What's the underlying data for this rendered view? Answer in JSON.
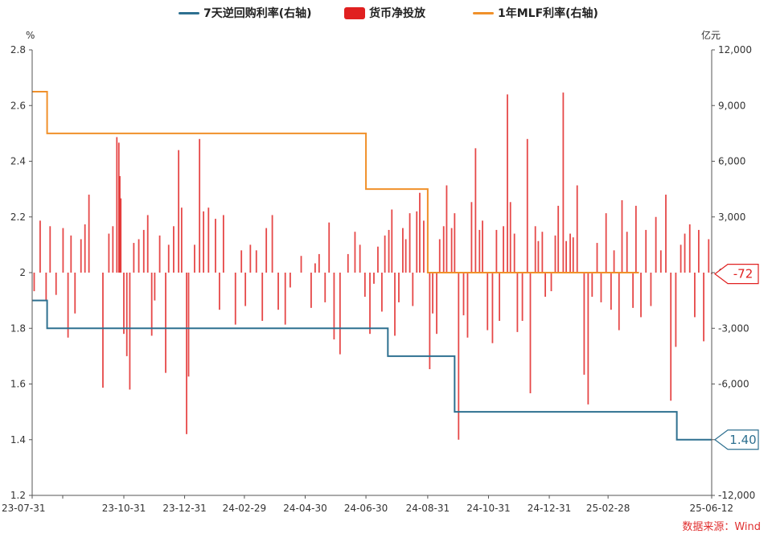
{
  "chart_data": {
    "type": "bar+line",
    "legend": [
      {
        "name": "7天逆回购利率(右轴)",
        "color": "#2e7090",
        "kind": "line"
      },
      {
        "name": "货币净投放",
        "color": "#e02020",
        "kind": "bar"
      },
      {
        "name": "1年MLF利率(右轴)",
        "color": "#f0902a",
        "kind": "line"
      }
    ],
    "left_axis": {
      "unit": "%",
      "min": 1.2,
      "max": 2.8,
      "ticks": [
        "1.2",
        "1.4",
        "1.6",
        "1.8",
        "2",
        "2.2",
        "2.4",
        "2.6",
        "2.8"
      ]
    },
    "right_axis": {
      "unit": "亿元",
      "min": -12000,
      "max": 12000,
      "ticks": [
        "-12,000",
        "-9,000",
        "-6,000",
        "-3,000",
        "0",
        "3,000",
        "6,000",
        "9,000",
        "12,000"
      ]
    },
    "x_axis": {
      "start": "2023-07-31",
      "end": "2025-06-12",
      "ticks": [
        {
          "date": "2023-07-31",
          "label": "23-07-31"
        },
        {
          "date": "2023-10-31",
          "label": "23-10-31"
        },
        {
          "date": "2023-12-31",
          "label": "23-12-31"
        },
        {
          "date": "2024-02-29",
          "label": "24-02-29"
        },
        {
          "date": "2024-04-30",
          "label": "24-04-30"
        },
        {
          "date": "2024-06-30",
          "label": "24-06-30"
        },
        {
          "date": "2024-08-31",
          "label": "24-08-31"
        },
        {
          "date": "2024-10-31",
          "label": "24-10-31"
        },
        {
          "date": "2024-12-31",
          "label": "24-12-31"
        },
        {
          "date": "2025-02-28",
          "label": "25-02-28"
        },
        {
          "date": "2025-06-12",
          "label": "25-06-12"
        }
      ]
    },
    "series": [
      {
        "name": "7天逆回购利率(右轴)",
        "axis": "left",
        "steps": [
          {
            "date": "2023-07-31",
            "value": 1.9
          },
          {
            "date": "2023-08-15",
            "value": 1.8
          },
          {
            "date": "2024-07-22",
            "value": 1.7
          },
          {
            "date": "2024-09-27",
            "value": 1.5
          },
          {
            "date": "2025-05-08",
            "value": 1.4
          }
        ],
        "end_label": "1.40"
      },
      {
        "name": "1年MLF利率(右轴)",
        "axis": "left",
        "steps": [
          {
            "date": "2023-07-31",
            "value": 2.65
          },
          {
            "date": "2023-08-15",
            "value": 2.5
          },
          {
            "date": "2024-06-30",
            "value": 2.3
          },
          {
            "date": "2024-08-31",
            "value": 2.0
          },
          {
            "date": "2025-03-31",
            "value": 2.0
          }
        ]
      },
      {
        "name": "货币净投放",
        "axis": "right",
        "end_label": "-72",
        "bars": [
          {
            "date": "2023-08-02",
            "value": -1000
          },
          {
            "date": "2023-08-08",
            "value": 2800
          },
          {
            "date": "2023-08-14",
            "value": -1500
          },
          {
            "date": "2023-08-18",
            "value": 2500
          },
          {
            "date": "2023-08-24",
            "value": -1200
          },
          {
            "date": "2023-08-31",
            "value": 2400
          },
          {
            "date": "2023-09-05",
            "value": -3500
          },
          {
            "date": "2023-09-08",
            "value": 2000
          },
          {
            "date": "2023-09-12",
            "value": -2200
          },
          {
            "date": "2023-09-18",
            "value": 1800
          },
          {
            "date": "2023-09-22",
            "value": 2600
          },
          {
            "date": "2023-09-26",
            "value": 4200
          },
          {
            "date": "2023-10-10",
            "value": -6200
          },
          {
            "date": "2023-10-16",
            "value": 2100
          },
          {
            "date": "2023-10-20",
            "value": 2500
          },
          {
            "date": "2023-10-24",
            "value": 7300
          },
          {
            "date": "2023-10-26",
            "value": 7000
          },
          {
            "date": "2023-10-27",
            "value": 5200
          },
          {
            "date": "2023-10-28",
            "value": 4000
          },
          {
            "date": "2023-10-31",
            "value": -3300
          },
          {
            "date": "2023-11-03",
            "value": -4500
          },
          {
            "date": "2023-11-06",
            "value": -6300
          },
          {
            "date": "2023-11-10",
            "value": 1600
          },
          {
            "date": "2023-11-15",
            "value": 1800
          },
          {
            "date": "2023-11-20",
            "value": 2300
          },
          {
            "date": "2023-11-24",
            "value": 3100
          },
          {
            "date": "2023-11-28",
            "value": -3400
          },
          {
            "date": "2023-12-01",
            "value": -1500
          },
          {
            "date": "2023-12-06",
            "value": 2000
          },
          {
            "date": "2023-12-12",
            "value": -5400
          },
          {
            "date": "2023-12-15",
            "value": 1500
          },
          {
            "date": "2023-12-20",
            "value": 2500
          },
          {
            "date": "2023-12-25",
            "value": 6600
          },
          {
            "date": "2023-12-28",
            "value": 3500
          },
          {
            "date": "2024-01-02",
            "value": -8700
          },
          {
            "date": "2024-01-04",
            "value": -5600
          },
          {
            "date": "2024-01-10",
            "value": 1500
          },
          {
            "date": "2024-01-15",
            "value": 7200
          },
          {
            "date": "2024-01-19",
            "value": 3300
          },
          {
            "date": "2024-01-24",
            "value": 3500
          },
          {
            "date": "2024-01-31",
            "value": 2900
          },
          {
            "date": "2024-02-04",
            "value": -2000
          },
          {
            "date": "2024-02-08",
            "value": 3100
          },
          {
            "date": "2024-02-20",
            "value": -2800
          },
          {
            "date": "2024-02-26",
            "value": 1200
          },
          {
            "date": "2024-03-01",
            "value": -1800
          },
          {
            "date": "2024-03-06",
            "value": 1500
          },
          {
            "date": "2024-03-12",
            "value": 1200
          },
          {
            "date": "2024-03-18",
            "value": -2600
          },
          {
            "date": "2024-03-22",
            "value": 2400
          },
          {
            "date": "2024-03-28",
            "value": 3100
          },
          {
            "date": "2024-04-03",
            "value": -2000
          },
          {
            "date": "2024-04-10",
            "value": -2800
          },
          {
            "date": "2024-04-15",
            "value": -800
          },
          {
            "date": "2024-04-26",
            "value": 900
          },
          {
            "date": "2024-05-06",
            "value": -1900
          },
          {
            "date": "2024-05-10",
            "value": 500
          },
          {
            "date": "2024-05-14",
            "value": 1000
          },
          {
            "date": "2024-05-20",
            "value": -1600
          },
          {
            "date": "2024-05-24",
            "value": 2700
          },
          {
            "date": "2024-05-29",
            "value": -3600
          },
          {
            "date": "2024-06-04",
            "value": -4400
          },
          {
            "date": "2024-06-12",
            "value": 1000
          },
          {
            "date": "2024-06-19",
            "value": 2200
          },
          {
            "date": "2024-06-24",
            "value": 1500
          },
          {
            "date": "2024-06-29",
            "value": -1300
          },
          {
            "date": "2024-07-04",
            "value": -3300
          },
          {
            "date": "2024-07-08",
            "value": -600
          },
          {
            "date": "2024-07-12",
            "value": 1400
          },
          {
            "date": "2024-07-16",
            "value": -2100
          },
          {
            "date": "2024-07-19",
            "value": 2000
          },
          {
            "date": "2024-07-23",
            "value": 2300
          },
          {
            "date": "2024-07-26",
            "value": 3400
          },
          {
            "date": "2024-07-29",
            "value": -3400
          },
          {
            "date": "2024-08-02",
            "value": -1600
          },
          {
            "date": "2024-08-06",
            "value": 2400
          },
          {
            "date": "2024-08-09",
            "value": 1800
          },
          {
            "date": "2024-08-13",
            "value": 3200
          },
          {
            "date": "2024-08-16",
            "value": -1800
          },
          {
            "date": "2024-08-20",
            "value": 3300
          },
          {
            "date": "2024-08-23",
            "value": 4300
          },
          {
            "date": "2024-08-27",
            "value": 2800
          },
          {
            "date": "2024-09-02",
            "value": -5200
          },
          {
            "date": "2024-09-05",
            "value": -2200
          },
          {
            "date": "2024-09-09",
            "value": -3300
          },
          {
            "date": "2024-09-12",
            "value": 1800
          },
          {
            "date": "2024-09-16",
            "value": 2500
          },
          {
            "date": "2024-09-19",
            "value": 4700
          },
          {
            "date": "2024-09-24",
            "value": 2400
          },
          {
            "date": "2024-09-27",
            "value": 3200
          },
          {
            "date": "2024-10-01",
            "value": -9000
          },
          {
            "date": "2024-10-06",
            "value": -2300
          },
          {
            "date": "2024-10-10",
            "value": -3500
          },
          {
            "date": "2024-10-14",
            "value": 3800
          },
          {
            "date": "2024-10-18",
            "value": 6700
          },
          {
            "date": "2024-10-22",
            "value": 2300
          },
          {
            "date": "2024-10-25",
            "value": 2800
          },
          {
            "date": "2024-10-30",
            "value": -3100
          },
          {
            "date": "2024-11-04",
            "value": -3800
          },
          {
            "date": "2024-11-08",
            "value": 2300
          },
          {
            "date": "2024-11-11",
            "value": -2600
          },
          {
            "date": "2024-11-15",
            "value": 2500
          },
          {
            "date": "2024-11-19",
            "value": 9600
          },
          {
            "date": "2024-11-22",
            "value": 3800
          },
          {
            "date": "2024-11-26",
            "value": 2100
          },
          {
            "date": "2024-11-29",
            "value": -3200
          },
          {
            "date": "2024-12-04",
            "value": -2600
          },
          {
            "date": "2024-12-09",
            "value": 7200
          },
          {
            "date": "2024-12-12",
            "value": -6500
          },
          {
            "date": "2024-12-17",
            "value": 2500
          },
          {
            "date": "2024-12-20",
            "value": 1700
          },
          {
            "date": "2024-12-24",
            "value": 2200
          },
          {
            "date": "2024-12-27",
            "value": -1300
          },
          {
            "date": "2025-01-02",
            "value": -1000
          },
          {
            "date": "2025-01-06",
            "value": 2000
          },
          {
            "date": "2025-01-09",
            "value": 3600
          },
          {
            "date": "2025-01-14",
            "value": 9700
          },
          {
            "date": "2025-01-17",
            "value": 1700
          },
          {
            "date": "2025-01-21",
            "value": 2100
          },
          {
            "date": "2025-01-24",
            "value": 1900
          },
          {
            "date": "2025-01-28",
            "value": 4700
          },
          {
            "date": "2025-02-04",
            "value": -5500
          },
          {
            "date": "2025-02-08",
            "value": -7100
          },
          {
            "date": "2025-02-12",
            "value": -1300
          },
          {
            "date": "2025-02-17",
            "value": 1600
          },
          {
            "date": "2025-02-21",
            "value": -1600
          },
          {
            "date": "2025-02-26",
            "value": 3200
          },
          {
            "date": "2025-03-03",
            "value": -2000
          },
          {
            "date": "2025-03-06",
            "value": 1200
          },
          {
            "date": "2025-03-11",
            "value": -3100
          },
          {
            "date": "2025-03-14",
            "value": 3900
          },
          {
            "date": "2025-03-19",
            "value": 2200
          },
          {
            "date": "2025-03-25",
            "value": -1900
          },
          {
            "date": "2025-03-28",
            "value": 3600
          },
          {
            "date": "2025-04-02",
            "value": -2400
          },
          {
            "date": "2025-04-07",
            "value": 2300
          },
          {
            "date": "2025-04-12",
            "value": -1800
          },
          {
            "date": "2025-04-17",
            "value": 3000
          },
          {
            "date": "2025-04-22",
            "value": 1200
          },
          {
            "date": "2025-04-27",
            "value": 4200
          },
          {
            "date": "2025-05-02",
            "value": -6900
          },
          {
            "date": "2025-05-07",
            "value": -4000
          },
          {
            "date": "2025-05-12",
            "value": 1500
          },
          {
            "date": "2025-05-16",
            "value": 2100
          },
          {
            "date": "2025-05-21",
            "value": 2600
          },
          {
            "date": "2025-05-26",
            "value": -2400
          },
          {
            "date": "2025-05-30",
            "value": 2300
          },
          {
            "date": "2025-06-04",
            "value": -3700
          },
          {
            "date": "2025-06-09",
            "value": 1800
          },
          {
            "date": "2025-06-12",
            "value": -72
          }
        ]
      }
    ],
    "source": "数据来源：Wind"
  }
}
